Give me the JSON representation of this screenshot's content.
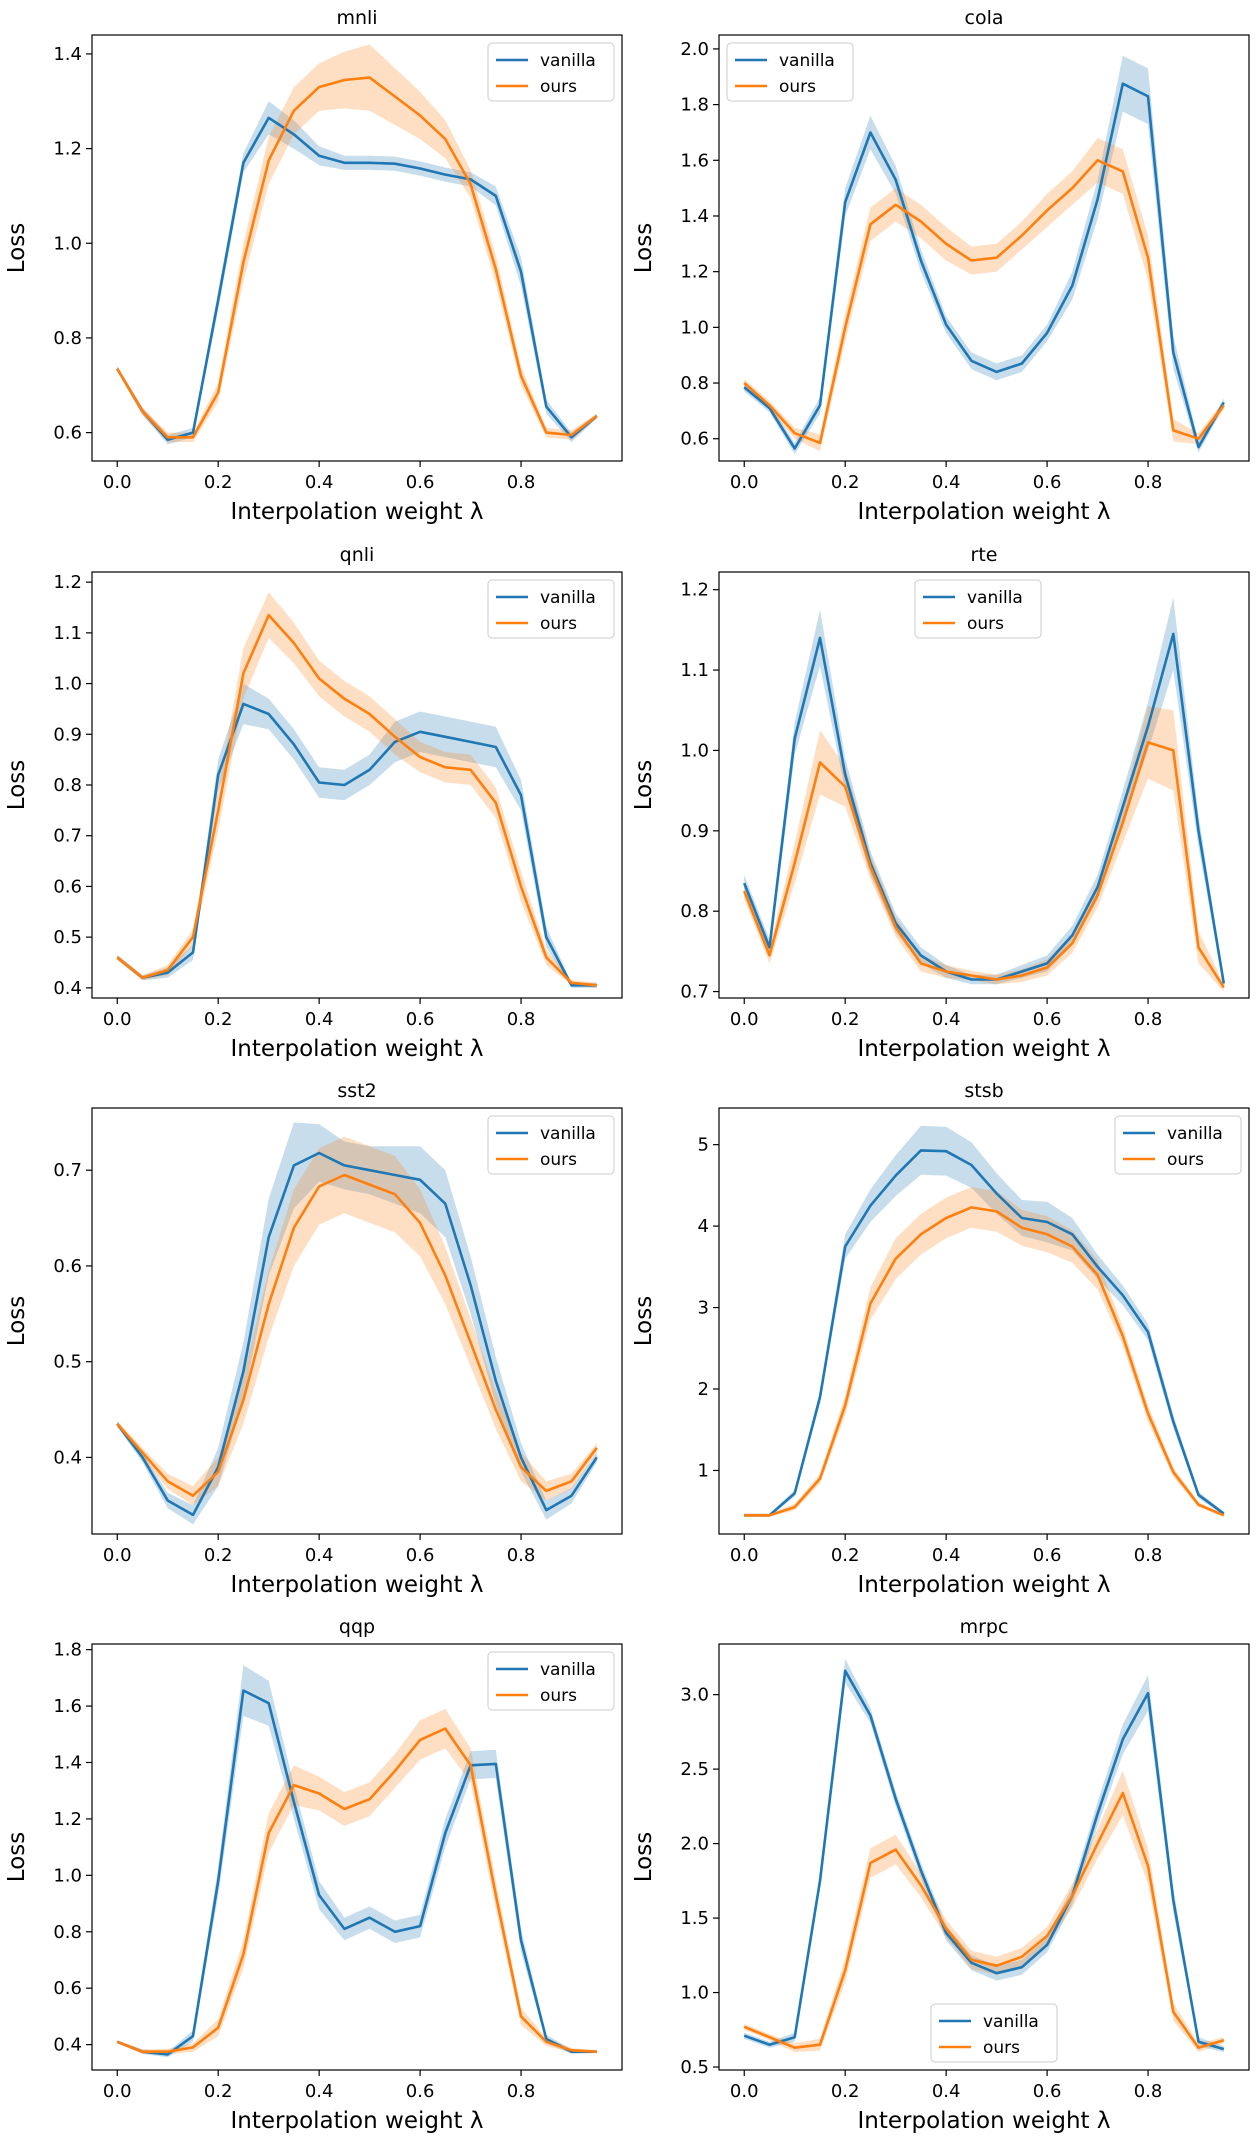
{
  "colors": {
    "vanilla": "#1f77b4",
    "ours": "#ff7f0e"
  },
  "chart_data": [
    {
      "type": "line",
      "title": "mnli",
      "xlabel": "Interpolation weight λ",
      "ylabel": "Loss",
      "xlim": [
        -0.05,
        1.0
      ],
      "ylim": [
        0.54,
        1.44
      ],
      "xticks": [
        "0.0",
        "0.2",
        "0.4",
        "0.6",
        "0.8"
      ],
      "yticks": [
        "0.6",
        "0.8",
        "1.0",
        "1.2",
        "1.4"
      ],
      "legend_position": "upper right",
      "x": [
        0.0,
        0.05,
        0.1,
        0.15,
        0.2,
        0.25,
        0.3,
        0.35,
        0.4,
        0.45,
        0.5,
        0.55,
        0.6,
        0.65,
        0.7,
        0.75,
        0.8,
        0.85,
        0.9,
        0.95
      ],
      "series": [
        {
          "name": "vanilla",
          "values": [
            0.735,
            0.645,
            0.585,
            0.6,
            0.88,
            1.17,
            1.265,
            1.23,
            1.185,
            1.17,
            1.17,
            1.168,
            1.158,
            1.145,
            1.135,
            1.1,
            0.94,
            0.655,
            0.59,
            0.635
          ],
          "band": [
            0.005,
            0.008,
            0.01,
            0.01,
            0.02,
            0.02,
            0.035,
            0.03,
            0.02,
            0.015,
            0.015,
            0.015,
            0.015,
            0.015,
            0.015,
            0.02,
            0.03,
            0.015,
            0.01,
            0.005
          ]
        },
        {
          "name": "ours",
          "values": [
            0.735,
            0.645,
            0.59,
            0.59,
            0.685,
            0.96,
            1.175,
            1.28,
            1.33,
            1.345,
            1.35,
            1.31,
            1.27,
            1.22,
            1.125,
            0.945,
            0.72,
            0.6,
            0.595,
            0.635
          ],
          "band": [
            0.005,
            0.008,
            0.01,
            0.01,
            0.02,
            0.04,
            0.05,
            0.05,
            0.05,
            0.06,
            0.07,
            0.06,
            0.05,
            0.04,
            0.03,
            0.03,
            0.02,
            0.01,
            0.01,
            0.005
          ]
        }
      ]
    },
    {
      "type": "line",
      "title": "cola",
      "xlabel": "Interpolation weight λ",
      "ylabel": "Loss",
      "xlim": [
        -0.05,
        1.0
      ],
      "ylim": [
        0.52,
        2.05
      ],
      "xticks": [
        "0.0",
        "0.2",
        "0.4",
        "0.6",
        "0.8"
      ],
      "yticks": [
        "0.6",
        "0.8",
        "1.0",
        "1.2",
        "1.4",
        "1.6",
        "1.8",
        "2.0"
      ],
      "legend_position": "upper left",
      "x": [
        0.0,
        0.05,
        0.1,
        0.15,
        0.2,
        0.25,
        0.3,
        0.35,
        0.4,
        0.45,
        0.5,
        0.55,
        0.6,
        0.65,
        0.7,
        0.75,
        0.8,
        0.85,
        0.9,
        0.95
      ],
      "series": [
        {
          "name": "vanilla",
          "values": [
            0.785,
            0.71,
            0.565,
            0.72,
            1.45,
            1.7,
            1.53,
            1.24,
            1.01,
            0.88,
            0.84,
            0.87,
            0.98,
            1.15,
            1.46,
            1.875,
            1.83,
            0.91,
            0.57,
            0.73
          ],
          "band": [
            0.015,
            0.015,
            0.02,
            0.03,
            0.05,
            0.06,
            0.05,
            0.04,
            0.03,
            0.03,
            0.03,
            0.03,
            0.03,
            0.05,
            0.07,
            0.1,
            0.1,
            0.06,
            0.02,
            0.015
          ]
        },
        {
          "name": "ours",
          "values": [
            0.8,
            0.72,
            0.62,
            0.585,
            1.0,
            1.37,
            1.44,
            1.38,
            1.3,
            1.24,
            1.25,
            1.33,
            1.42,
            1.5,
            1.6,
            1.56,
            1.25,
            0.63,
            0.6,
            0.72
          ],
          "band": [
            0.015,
            0.015,
            0.02,
            0.03,
            0.05,
            0.06,
            0.06,
            0.06,
            0.06,
            0.05,
            0.05,
            0.05,
            0.06,
            0.06,
            0.08,
            0.08,
            0.08,
            0.04,
            0.02,
            0.015
          ]
        }
      ]
    },
    {
      "type": "line",
      "title": "qnli",
      "xlabel": "Interpolation weight λ",
      "ylabel": "Loss",
      "xlim": [
        -0.05,
        1.0
      ],
      "ylim": [
        0.38,
        1.22
      ],
      "xticks": [
        "0.0",
        "0.2",
        "0.4",
        "0.6",
        "0.8"
      ],
      "yticks": [
        "0.4",
        "0.5",
        "0.6",
        "0.7",
        "0.8",
        "0.9",
        "1.0",
        "1.1",
        "1.2"
      ],
      "legend_position": "upper right",
      "x": [
        0.0,
        0.05,
        0.1,
        0.15,
        0.2,
        0.25,
        0.3,
        0.35,
        0.4,
        0.45,
        0.5,
        0.55,
        0.6,
        0.65,
        0.7,
        0.75,
        0.8,
        0.85,
        0.9,
        0.95
      ],
      "series": [
        {
          "name": "vanilla",
          "values": [
            0.46,
            0.42,
            0.43,
            0.47,
            0.82,
            0.96,
            0.94,
            0.88,
            0.805,
            0.8,
            0.83,
            0.885,
            0.905,
            0.895,
            0.885,
            0.875,
            0.78,
            0.5,
            0.405,
            0.405
          ],
          "band": [
            0.005,
            0.005,
            0.01,
            0.015,
            0.03,
            0.04,
            0.03,
            0.03,
            0.03,
            0.03,
            0.03,
            0.04,
            0.04,
            0.04,
            0.04,
            0.04,
            0.03,
            0.02,
            0.005,
            0.005
          ]
        },
        {
          "name": "ours",
          "values": [
            0.46,
            0.42,
            0.435,
            0.5,
            0.75,
            1.02,
            1.135,
            1.08,
            1.01,
            0.97,
            0.94,
            0.895,
            0.855,
            0.835,
            0.83,
            0.765,
            0.6,
            0.46,
            0.41,
            0.405
          ],
          "band": [
            0.005,
            0.005,
            0.01,
            0.015,
            0.04,
            0.05,
            0.045,
            0.04,
            0.035,
            0.035,
            0.035,
            0.035,
            0.03,
            0.03,
            0.03,
            0.03,
            0.03,
            0.015,
            0.005,
            0.005
          ]
        }
      ]
    },
    {
      "type": "line",
      "title": "rte",
      "xlabel": "Interpolation weight λ",
      "ylabel": "Loss",
      "xlim": [
        -0.05,
        1.0
      ],
      "ylim": [
        0.692,
        1.222
      ],
      "xticks": [
        "0.0",
        "0.2",
        "0.4",
        "0.6",
        "0.8"
      ],
      "yticks": [
        "0.7",
        "0.8",
        "0.9",
        "1.0",
        "1.1",
        "1.2"
      ],
      "legend_position": "upper center",
      "x": [
        0.0,
        0.05,
        0.1,
        0.15,
        0.2,
        0.25,
        0.3,
        0.35,
        0.4,
        0.45,
        0.5,
        0.55,
        0.6,
        0.65,
        0.7,
        0.75,
        0.8,
        0.85,
        0.9,
        0.95
      ],
      "series": [
        {
          "name": "vanilla",
          "values": [
            0.835,
            0.755,
            1.015,
            1.14,
            0.97,
            0.86,
            0.785,
            0.745,
            0.725,
            0.715,
            0.715,
            0.725,
            0.735,
            0.77,
            0.83,
            0.93,
            1.03,
            1.145,
            0.9,
            0.71
          ],
          "band": [
            0.01,
            0.01,
            0.02,
            0.035,
            0.02,
            0.015,
            0.012,
            0.01,
            0.008,
            0.006,
            0.006,
            0.008,
            0.01,
            0.012,
            0.015,
            0.02,
            0.03,
            0.045,
            0.02,
            0.005
          ]
        },
        {
          "name": "ours",
          "values": [
            0.825,
            0.745,
            0.86,
            0.985,
            0.955,
            0.855,
            0.78,
            0.735,
            0.725,
            0.72,
            0.715,
            0.72,
            0.73,
            0.76,
            0.82,
            0.91,
            1.01,
            1.0,
            0.755,
            0.705
          ],
          "band": [
            0.01,
            0.01,
            0.025,
            0.04,
            0.025,
            0.015,
            0.012,
            0.01,
            0.008,
            0.006,
            0.006,
            0.008,
            0.01,
            0.012,
            0.015,
            0.025,
            0.045,
            0.05,
            0.02,
            0.005
          ]
        }
      ]
    },
    {
      "type": "line",
      "title": "sst2",
      "xlabel": "Interpolation weight λ",
      "ylabel": "Loss",
      "xlim": [
        -0.05,
        1.0
      ],
      "ylim": [
        0.32,
        0.765
      ],
      "xticks": [
        "0.0",
        "0.2",
        "0.4",
        "0.6",
        "0.8"
      ],
      "yticks": [
        "0.4",
        "0.5",
        "0.6",
        "0.7"
      ],
      "legend_position": "upper right",
      "x": [
        0.0,
        0.05,
        0.1,
        0.15,
        0.2,
        0.25,
        0.3,
        0.35,
        0.4,
        0.45,
        0.5,
        0.55,
        0.6,
        0.65,
        0.7,
        0.75,
        0.8,
        0.85,
        0.9,
        0.95
      ],
      "series": [
        {
          "name": "vanilla",
          "values": [
            0.435,
            0.4,
            0.355,
            0.34,
            0.39,
            0.49,
            0.63,
            0.705,
            0.718,
            0.705,
            0.7,
            0.695,
            0.69,
            0.665,
            0.58,
            0.48,
            0.4,
            0.345,
            0.36,
            0.4
          ],
          "band": [
            0.003,
            0.005,
            0.008,
            0.01,
            0.02,
            0.03,
            0.04,
            0.045,
            0.03,
            0.025,
            0.025,
            0.03,
            0.035,
            0.035,
            0.03,
            0.025,
            0.015,
            0.01,
            0.008,
            0.005
          ]
        },
        {
          "name": "ours",
          "values": [
            0.435,
            0.405,
            0.375,
            0.36,
            0.385,
            0.46,
            0.56,
            0.64,
            0.683,
            0.695,
            0.685,
            0.675,
            0.645,
            0.59,
            0.52,
            0.45,
            0.39,
            0.365,
            0.375,
            0.41
          ],
          "band": [
            0.003,
            0.005,
            0.008,
            0.01,
            0.015,
            0.025,
            0.035,
            0.04,
            0.04,
            0.04,
            0.04,
            0.04,
            0.035,
            0.03,
            0.025,
            0.02,
            0.015,
            0.01,
            0.008,
            0.005
          ]
        }
      ]
    },
    {
      "type": "line",
      "title": "stsb",
      "xlabel": "Interpolation weight λ",
      "ylabel": "Loss",
      "xlim": [
        -0.05,
        1.0
      ],
      "ylim": [
        0.22,
        5.45
      ],
      "xticks": [
        "0.0",
        "0.2",
        "0.4",
        "0.6",
        "0.8"
      ],
      "yticks": [
        "1",
        "2",
        "3",
        "4",
        "5"
      ],
      "legend_position": "upper right",
      "x": [
        0.0,
        0.05,
        0.1,
        0.15,
        0.2,
        0.25,
        0.3,
        0.35,
        0.4,
        0.45,
        0.5,
        0.55,
        0.6,
        0.65,
        0.7,
        0.75,
        0.8,
        0.85,
        0.9,
        0.95
      ],
      "series": [
        {
          "name": "vanilla",
          "values": [
            0.45,
            0.45,
            0.72,
            1.9,
            3.75,
            4.25,
            4.62,
            4.93,
            4.92,
            4.75,
            4.4,
            4.1,
            4.05,
            3.9,
            3.5,
            3.15,
            2.7,
            1.6,
            0.7,
            0.47
          ],
          "band": [
            0.02,
            0.02,
            0.04,
            0.08,
            0.15,
            0.2,
            0.25,
            0.3,
            0.3,
            0.28,
            0.25,
            0.22,
            0.25,
            0.2,
            0.15,
            0.12,
            0.1,
            0.08,
            0.04,
            0.02
          ]
        },
        {
          "name": "ours",
          "values": [
            0.45,
            0.45,
            0.55,
            0.9,
            1.8,
            3.05,
            3.6,
            3.9,
            4.1,
            4.23,
            4.18,
            3.98,
            3.9,
            3.75,
            3.4,
            2.65,
            1.7,
            0.98,
            0.58,
            0.45
          ],
          "band": [
            0.02,
            0.02,
            0.04,
            0.06,
            0.12,
            0.2,
            0.25,
            0.25,
            0.25,
            0.25,
            0.25,
            0.22,
            0.22,
            0.2,
            0.18,
            0.12,
            0.1,
            0.06,
            0.03,
            0.02
          ]
        }
      ]
    },
    {
      "type": "line",
      "title": "qqp",
      "xlabel": "Interpolation weight λ",
      "ylabel": "Loss",
      "xlim": [
        -0.05,
        1.0
      ],
      "ylim": [
        0.31,
        1.82
      ],
      "xticks": [
        "0.0",
        "0.2",
        "0.4",
        "0.6",
        "0.8"
      ],
      "yticks": [
        "0.4",
        "0.6",
        "0.8",
        "1.0",
        "1.2",
        "1.4",
        "1.6",
        "1.8"
      ],
      "legend_position": "upper right",
      "x": [
        0.0,
        0.05,
        0.1,
        0.15,
        0.2,
        0.25,
        0.3,
        0.35,
        0.4,
        0.45,
        0.5,
        0.55,
        0.6,
        0.65,
        0.7,
        0.75,
        0.8,
        0.85,
        0.9,
        0.95
      ],
      "series": [
        {
          "name": "vanilla",
          "values": [
            0.41,
            0.375,
            0.365,
            0.43,
            0.98,
            1.655,
            1.61,
            1.26,
            0.93,
            0.81,
            0.85,
            0.8,
            0.82,
            1.15,
            1.39,
            1.395,
            0.77,
            0.42,
            0.375,
            0.375
          ],
          "band": [
            0.005,
            0.008,
            0.01,
            0.02,
            0.05,
            0.09,
            0.08,
            0.06,
            0.05,
            0.04,
            0.04,
            0.04,
            0.04,
            0.05,
            0.05,
            0.05,
            0.04,
            0.015,
            0.008,
            0.005
          ]
        },
        {
          "name": "ours",
          "values": [
            0.41,
            0.375,
            0.375,
            0.39,
            0.46,
            0.72,
            1.15,
            1.32,
            1.29,
            1.235,
            1.27,
            1.37,
            1.48,
            1.52,
            1.39,
            0.93,
            0.5,
            0.41,
            0.38,
            0.375
          ],
          "band": [
            0.005,
            0.008,
            0.01,
            0.015,
            0.03,
            0.05,
            0.07,
            0.07,
            0.06,
            0.06,
            0.06,
            0.06,
            0.07,
            0.07,
            0.06,
            0.05,
            0.03,
            0.015,
            0.008,
            0.005
          ]
        }
      ]
    },
    {
      "type": "line",
      "title": "mrpc",
      "xlabel": "Interpolation weight λ",
      "ylabel": "Loss",
      "xlim": [
        -0.05,
        1.0
      ],
      "ylim": [
        0.48,
        3.34
      ],
      "xticks": [
        "0.0",
        "0.2",
        "0.4",
        "0.6",
        "0.8"
      ],
      "yticks": [
        "0.5",
        "1.0",
        "1.5",
        "2.0",
        "2.5",
        "3.0"
      ],
      "legend_position": "lower center",
      "x": [
        0.0,
        0.05,
        0.1,
        0.15,
        0.2,
        0.25,
        0.3,
        0.35,
        0.4,
        0.45,
        0.5,
        0.55,
        0.6,
        0.65,
        0.7,
        0.75,
        0.8,
        0.85,
        0.9,
        0.95
      ],
      "series": [
        {
          "name": "vanilla",
          "values": [
            0.71,
            0.65,
            0.7,
            1.75,
            3.16,
            2.86,
            2.3,
            1.82,
            1.4,
            1.2,
            1.13,
            1.17,
            1.32,
            1.65,
            2.2,
            2.7,
            3.01,
            1.62,
            0.67,
            0.62
          ],
          "band": [
            0.02,
            0.02,
            0.03,
            0.05,
            0.08,
            0.05,
            0.05,
            0.05,
            0.05,
            0.05,
            0.05,
            0.05,
            0.05,
            0.06,
            0.08,
            0.1,
            0.12,
            0.08,
            0.03,
            0.02
          ]
        },
        {
          "name": "ours",
          "values": [
            0.77,
            0.7,
            0.63,
            0.65,
            1.15,
            1.87,
            1.96,
            1.72,
            1.43,
            1.22,
            1.18,
            1.24,
            1.38,
            1.65,
            2.0,
            2.34,
            1.85,
            0.87,
            0.63,
            0.68
          ],
          "band": [
            0.02,
            0.02,
            0.03,
            0.04,
            0.08,
            0.1,
            0.1,
            0.08,
            0.06,
            0.06,
            0.06,
            0.06,
            0.06,
            0.08,
            0.1,
            0.15,
            0.12,
            0.06,
            0.03,
            0.02
          ]
        }
      ]
    }
  ]
}
